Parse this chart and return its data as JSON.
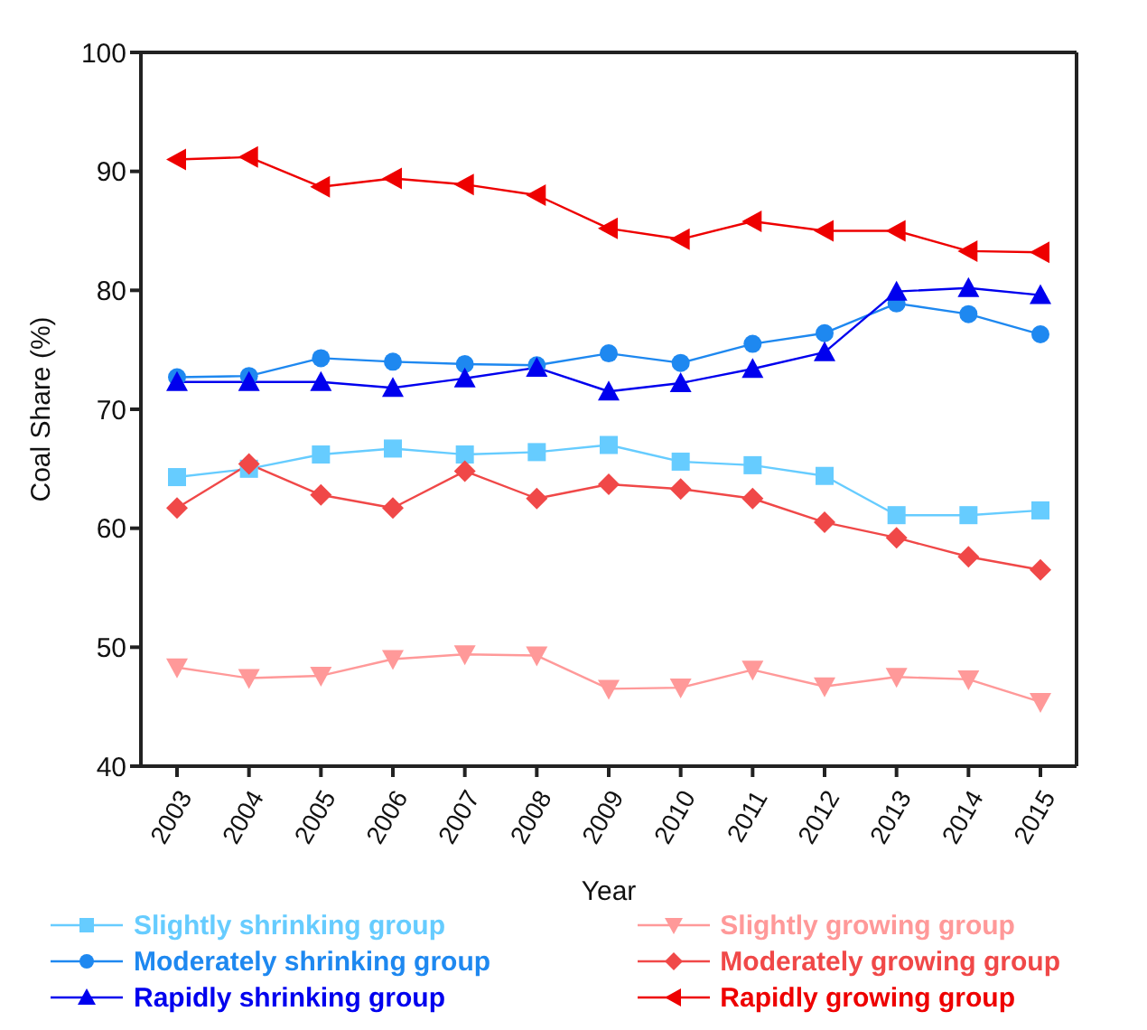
{
  "chart_data": {
    "type": "line",
    "xlabel": "Year",
    "ylabel": "Coal Share (%)",
    "categories": [
      "2003",
      "2004",
      "2005",
      "2006",
      "2007",
      "2008",
      "2009",
      "2010",
      "2011",
      "2012",
      "2013",
      "2014",
      "2015"
    ],
    "ylim": [
      40,
      100
    ],
    "yticks": [
      40,
      50,
      60,
      70,
      80,
      90,
      100
    ],
    "grid": false,
    "legend": "bottom",
    "line_style": "solid",
    "series": [
      {
        "name": "Slightly shrinking group",
        "color": "#66ccff",
        "marker": "square",
        "values": [
          64.3,
          65,
          66.2,
          66.7,
          66.2,
          66.4,
          67,
          65.6,
          65.3,
          64.4,
          61.1,
          61.1,
          61.5
        ]
      },
      {
        "name": "Moderately shrinking group",
        "color": "#1e88f0",
        "marker": "circle",
        "values": [
          72.7,
          72.8,
          74.3,
          74,
          73.8,
          73.7,
          74.7,
          73.9,
          75.5,
          76.4,
          78.9,
          78,
          76.3
        ]
      },
      {
        "name": "Rapidly shrinking group",
        "color": "#0000ee",
        "marker": "triangle",
        "values": [
          72.3,
          72.3,
          72.3,
          71.8,
          72.6,
          73.5,
          71.5,
          72.2,
          73.4,
          74.8,
          79.9,
          80.2,
          79.6
        ]
      },
      {
        "name": "Slightly growing group",
        "color": "#ff9999",
        "marker": "triangle-down",
        "values": [
          48.3,
          47.4,
          47.6,
          49,
          49.4,
          49.3,
          46.5,
          46.6,
          48.1,
          46.7,
          47.5,
          47.3,
          45.4
        ]
      },
      {
        "name": "Moderately growing group",
        "color": "#f04848",
        "marker": "diamond",
        "values": [
          61.7,
          65.4,
          62.8,
          61.7,
          64.8,
          62.5,
          63.7,
          63.3,
          62.5,
          60.5,
          59.2,
          57.6,
          56.5
        ]
      },
      {
        "name": "Rapidly growing group",
        "color": "#ee0000",
        "marker": "triangle-left",
        "values": [
          91,
          91.2,
          88.7,
          89.4,
          88.9,
          88,
          85.2,
          84.3,
          85.8,
          85,
          85,
          83.3,
          83.2
        ]
      }
    ]
  }
}
